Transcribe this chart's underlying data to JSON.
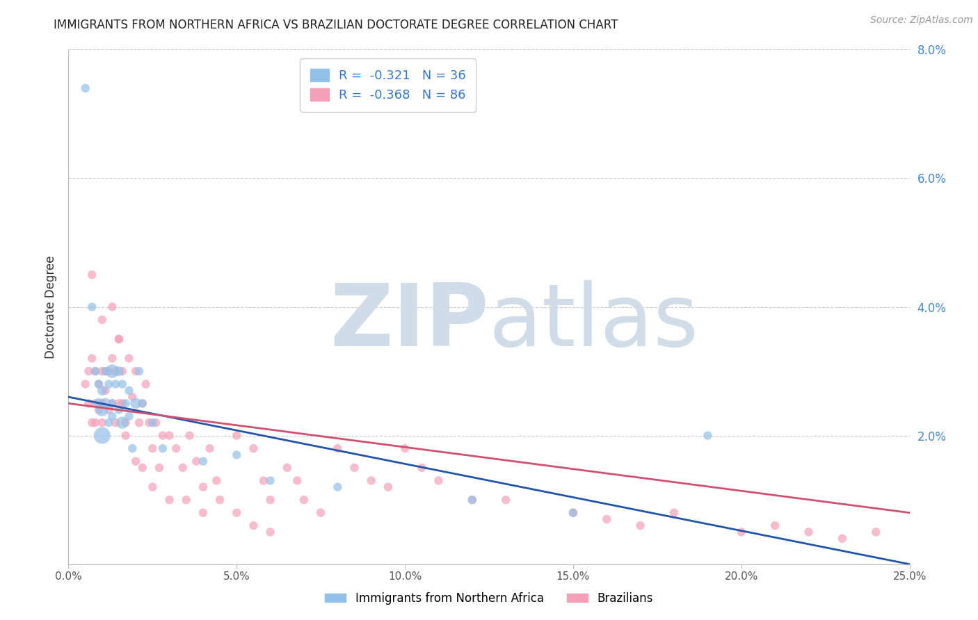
{
  "title": "IMMIGRANTS FROM NORTHERN AFRICA VS BRAZILIAN DOCTORATE DEGREE CORRELATION CHART",
  "source": "Source: ZipAtlas.com",
  "ylabel": "Doctorate Degree",
  "xlim": [
    0.0,
    0.25
  ],
  "ylim": [
    0.0,
    0.08
  ],
  "xticks": [
    0.0,
    0.05,
    0.1,
    0.15,
    0.2,
    0.25
  ],
  "yticks_right": [
    0.02,
    0.04,
    0.06,
    0.08
  ],
  "blue_label": "Immigrants from Northern Africa",
  "pink_label": "Brazilians",
  "blue_R": "-0.321",
  "blue_N": "36",
  "pink_R": "-0.368",
  "pink_N": "86",
  "blue_color": "#92C0E8",
  "pink_color": "#F4A0B8",
  "trend_blue": "#2255AA",
  "trend_pink": "#D05070",
  "watermark_zip": "ZIP",
  "watermark_atlas": "atlas",
  "watermark_color": "#D0DCE8",
  "trend_blue_y0": 0.026,
  "trend_blue_y1": 0.0,
  "trend_pink_y0": 0.025,
  "trend_pink_y1": 0.008,
  "blue_x": [
    0.005,
    0.007,
    0.008,
    0.009,
    0.009,
    0.01,
    0.01,
    0.011,
    0.011,
    0.012,
    0.012,
    0.013,
    0.013,
    0.013,
    0.014,
    0.015,
    0.015,
    0.016,
    0.016,
    0.017,
    0.018,
    0.018,
    0.019,
    0.02,
    0.021,
    0.022,
    0.025,
    0.028,
    0.04,
    0.05,
    0.06,
    0.08,
    0.12,
    0.15,
    0.19,
    0.01
  ],
  "blue_y": [
    0.074,
    0.04,
    0.03,
    0.028,
    0.025,
    0.027,
    0.024,
    0.03,
    0.025,
    0.028,
    0.022,
    0.03,
    0.025,
    0.023,
    0.028,
    0.03,
    0.024,
    0.022,
    0.028,
    0.025,
    0.027,
    0.023,
    0.018,
    0.025,
    0.03,
    0.025,
    0.022,
    0.018,
    0.016,
    0.017,
    0.013,
    0.012,
    0.01,
    0.008,
    0.02,
    0.02
  ],
  "blue_sizes": [
    80,
    80,
    80,
    80,
    120,
    100,
    180,
    80,
    130,
    80,
    80,
    200,
    80,
    80,
    80,
    100,
    80,
    160,
    80,
    80,
    80,
    80,
    80,
    130,
    80,
    80,
    80,
    80,
    80,
    80,
    80,
    80,
    80,
    80,
    80,
    300
  ],
  "pink_x": [
    0.005,
    0.006,
    0.006,
    0.007,
    0.007,
    0.008,
    0.008,
    0.008,
    0.009,
    0.009,
    0.01,
    0.01,
    0.01,
    0.011,
    0.011,
    0.012,
    0.012,
    0.013,
    0.013,
    0.014,
    0.014,
    0.015,
    0.015,
    0.016,
    0.016,
    0.017,
    0.018,
    0.019,
    0.02,
    0.021,
    0.022,
    0.023,
    0.024,
    0.025,
    0.026,
    0.027,
    0.028,
    0.03,
    0.032,
    0.034,
    0.036,
    0.038,
    0.04,
    0.042,
    0.044,
    0.05,
    0.055,
    0.058,
    0.06,
    0.065,
    0.068,
    0.07,
    0.075,
    0.08,
    0.085,
    0.09,
    0.095,
    0.1,
    0.105,
    0.11,
    0.12,
    0.13,
    0.15,
    0.16,
    0.17,
    0.18,
    0.2,
    0.21,
    0.22,
    0.23,
    0.24,
    0.007,
    0.01,
    0.013,
    0.015,
    0.017,
    0.02,
    0.022,
    0.025,
    0.03,
    0.035,
    0.04,
    0.045,
    0.05,
    0.055,
    0.06
  ],
  "pink_y": [
    0.028,
    0.03,
    0.025,
    0.032,
    0.022,
    0.03,
    0.025,
    0.022,
    0.028,
    0.024,
    0.03,
    0.025,
    0.022,
    0.03,
    0.027,
    0.03,
    0.024,
    0.032,
    0.025,
    0.03,
    0.022,
    0.035,
    0.025,
    0.03,
    0.025,
    0.022,
    0.032,
    0.026,
    0.03,
    0.022,
    0.025,
    0.028,
    0.022,
    0.018,
    0.022,
    0.015,
    0.02,
    0.02,
    0.018,
    0.015,
    0.02,
    0.016,
    0.012,
    0.018,
    0.013,
    0.02,
    0.018,
    0.013,
    0.01,
    0.015,
    0.013,
    0.01,
    0.008,
    0.018,
    0.015,
    0.013,
    0.012,
    0.018,
    0.015,
    0.013,
    0.01,
    0.01,
    0.008,
    0.007,
    0.006,
    0.008,
    0.005,
    0.006,
    0.005,
    0.004,
    0.005,
    0.045,
    0.038,
    0.04,
    0.035,
    0.02,
    0.016,
    0.015,
    0.012,
    0.01,
    0.01,
    0.008,
    0.01,
    0.008,
    0.006,
    0.005
  ],
  "pink_sizes": [
    80,
    80,
    80,
    80,
    80,
    80,
    80,
    80,
    80,
    80,
    80,
    80,
    80,
    80,
    80,
    80,
    80,
    80,
    80,
    80,
    80,
    80,
    80,
    80,
    80,
    80,
    80,
    80,
    80,
    80,
    80,
    80,
    80,
    80,
    80,
    80,
    80,
    80,
    80,
    80,
    80,
    80,
    80,
    80,
    80,
    80,
    80,
    80,
    80,
    80,
    80,
    80,
    80,
    80,
    80,
    80,
    80,
    80,
    80,
    80,
    80,
    80,
    80,
    80,
    80,
    80,
    80,
    80,
    80,
    80,
    80,
    80,
    80,
    80,
    80,
    80,
    80,
    80,
    80,
    80,
    80,
    80,
    80,
    80,
    80,
    80
  ]
}
